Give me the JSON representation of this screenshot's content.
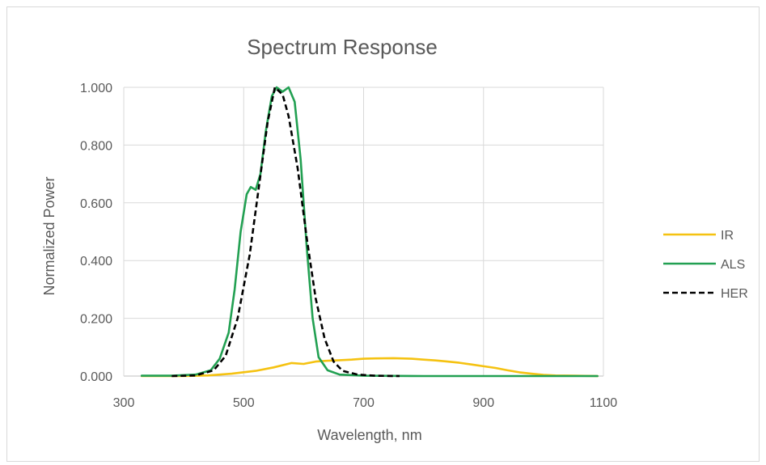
{
  "chart_data": {
    "type": "line",
    "title": "Spectrum Response",
    "xlabel": "Wavelength, nm",
    "ylabel": "Normalized Power",
    "xlim": [
      300,
      1100
    ],
    "ylim": [
      0,
      1
    ],
    "x_ticks": [
      300,
      500,
      700,
      900,
      1100
    ],
    "x_tick_labels": [
      "300",
      "500",
      "700",
      "900",
      "1100"
    ],
    "y_ticks": [
      0,
      0.2,
      0.4,
      0.6,
      0.8,
      1.0
    ],
    "y_tick_labels": [
      "0.000",
      "0.200",
      "0.400",
      "0.600",
      "0.800",
      "1.000"
    ],
    "grid": true,
    "legend_position": "right",
    "series": [
      {
        "name": "IR",
        "color": "#f5c211",
        "style": "solid",
        "points": [
          [
            330,
            0
          ],
          [
            400,
            0
          ],
          [
            440,
            0.002
          ],
          [
            480,
            0.008
          ],
          [
            520,
            0.018
          ],
          [
            550,
            0.03
          ],
          [
            580,
            0.045
          ],
          [
            600,
            0.042
          ],
          [
            620,
            0.05
          ],
          [
            640,
            0.053
          ],
          [
            660,
            0.055
          ],
          [
            680,
            0.057
          ],
          [
            700,
            0.06
          ],
          [
            720,
            0.061
          ],
          [
            750,
            0.062
          ],
          [
            780,
            0.06
          ],
          [
            800,
            0.057
          ],
          [
            820,
            0.054
          ],
          [
            840,
            0.05
          ],
          [
            860,
            0.046
          ],
          [
            880,
            0.04
          ],
          [
            900,
            0.034
          ],
          [
            920,
            0.028
          ],
          [
            940,
            0.02
          ],
          [
            960,
            0.013
          ],
          [
            980,
            0.008
          ],
          [
            1000,
            0.004
          ],
          [
            1020,
            0.002
          ],
          [
            1050,
            0.001
          ],
          [
            1090,
            0
          ]
        ]
      },
      {
        "name": "ALS",
        "color": "#22a052",
        "style": "solid",
        "points": [
          [
            330,
            0.001
          ],
          [
            380,
            0.001
          ],
          [
            420,
            0.005
          ],
          [
            445,
            0.02
          ],
          [
            460,
            0.06
          ],
          [
            475,
            0.15
          ],
          [
            485,
            0.3
          ],
          [
            495,
            0.5
          ],
          [
            505,
            0.63
          ],
          [
            512,
            0.655
          ],
          [
            520,
            0.645
          ],
          [
            528,
            0.7
          ],
          [
            537,
            0.85
          ],
          [
            547,
            0.97
          ],
          [
            555,
            1.0
          ],
          [
            565,
            0.985
          ],
          [
            575,
            1.0
          ],
          [
            585,
            0.95
          ],
          [
            595,
            0.75
          ],
          [
            605,
            0.45
          ],
          [
            615,
            0.2
          ],
          [
            625,
            0.065
          ],
          [
            640,
            0.02
          ],
          [
            660,
            0.005
          ],
          [
            700,
            0.001
          ],
          [
            800,
            0
          ],
          [
            1090,
            0
          ]
        ]
      },
      {
        "name": "HER",
        "color": "#000000",
        "style": "dashed",
        "points": [
          [
            380,
            0
          ],
          [
            420,
            0.002
          ],
          [
            450,
            0.02
          ],
          [
            470,
            0.07
          ],
          [
            490,
            0.2
          ],
          [
            510,
            0.42
          ],
          [
            525,
            0.65
          ],
          [
            540,
            0.88
          ],
          [
            552,
            1.0
          ],
          [
            565,
            0.975
          ],
          [
            575,
            0.9
          ],
          [
            590,
            0.72
          ],
          [
            605,
            0.48
          ],
          [
            620,
            0.27
          ],
          [
            635,
            0.13
          ],
          [
            650,
            0.05
          ],
          [
            665,
            0.018
          ],
          [
            690,
            0.005
          ],
          [
            720,
            0.001
          ],
          [
            760,
            0
          ]
        ]
      }
    ]
  }
}
